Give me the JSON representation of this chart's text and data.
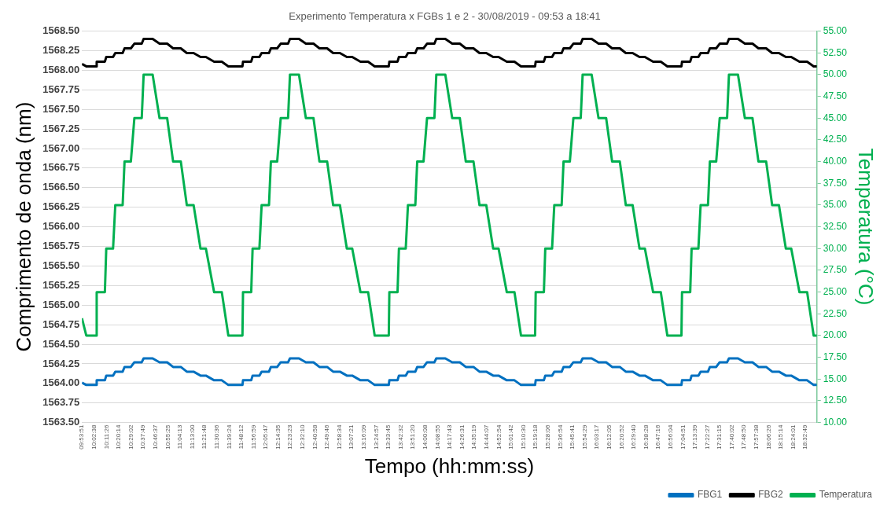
{
  "chart_data": {
    "type": "line",
    "title": "Experimento Temperatura x FGBs 1 e 2 - 30/08/2019 - 09:53 a 18:41",
    "xlabel": "Tempo (hh:mm:ss)",
    "ylabel": "Comprimento de onda (nm)",
    "y2label": "Temperatura (°C)",
    "xlim": [
      9.8975,
      18.6833
    ],
    "xticks": [
      {
        "value": 9.8975,
        "label": "09:53:51"
      },
      {
        "value": 10.0439,
        "label": "10:02:38"
      },
      {
        "value": 10.1906,
        "label": "10:11:26"
      },
      {
        "value": 10.3372,
        "label": "10:20:14"
      },
      {
        "value": 10.4839,
        "label": "10:29:02"
      },
      {
        "value": 10.6303,
        "label": "10:37:49"
      },
      {
        "value": 10.7769,
        "label": "10:46:37"
      },
      {
        "value": 10.9236,
        "label": "10:55:25"
      },
      {
        "value": 11.0703,
        "label": "11:04:13"
      },
      {
        "value": 11.2167,
        "label": "11:13:00"
      },
      {
        "value": 11.3633,
        "label": "11:21:48"
      },
      {
        "value": 11.51,
        "label": "11:30:36"
      },
      {
        "value": 11.6567,
        "label": "11:39:24"
      },
      {
        "value": 11.8033,
        "label": "11:48:12"
      },
      {
        "value": 11.9497,
        "label": "11:56:59"
      },
      {
        "value": 12.0964,
        "label": "12:05:47"
      },
      {
        "value": 12.2431,
        "label": "12:14:35"
      },
      {
        "value": 12.3897,
        "label": "12:23:23"
      },
      {
        "value": 12.5361,
        "label": "12:32:10"
      },
      {
        "value": 12.6828,
        "label": "12:40:58"
      },
      {
        "value": 12.8294,
        "label": "12:49:46"
      },
      {
        "value": 12.9761,
        "label": "12:58:34"
      },
      {
        "value": 13.1225,
        "label": "13:07:21"
      },
      {
        "value": 13.2692,
        "label": "13:16:09"
      },
      {
        "value": 13.4158,
        "label": "13:24:57"
      },
      {
        "value": 13.5625,
        "label": "13:33:45"
      },
      {
        "value": 13.7089,
        "label": "13:42:32"
      },
      {
        "value": 13.8556,
        "label": "13:51:20"
      },
      {
        "value": 14.0022,
        "label": "14:00:08"
      },
      {
        "value": 14.1486,
        "label": "14:08:55"
      },
      {
        "value": 14.2953,
        "label": "14:17:43"
      },
      {
        "value": 14.4419,
        "label": "14:26:31"
      },
      {
        "value": 14.5886,
        "label": "14:35:19"
      },
      {
        "value": 14.7353,
        "label": "14:44:07"
      },
      {
        "value": 14.8817,
        "label": "14:52:54"
      },
      {
        "value": 15.0283,
        "label": "15:01:42"
      },
      {
        "value": 15.175,
        "label": "15:10:30"
      },
      {
        "value": 15.3217,
        "label": "15:19:18"
      },
      {
        "value": 15.4683,
        "label": "15:28:06"
      },
      {
        "value": 15.615,
        "label": "15:36:54"
      },
      {
        "value": 15.7614,
        "label": "15:45:41"
      },
      {
        "value": 15.9081,
        "label": "15:54:29"
      },
      {
        "value": 16.0547,
        "label": "16:03:17"
      },
      {
        "value": 16.2014,
        "label": "16:12:05"
      },
      {
        "value": 16.3478,
        "label": "16:20:52"
      },
      {
        "value": 16.4944,
        "label": "16:29:40"
      },
      {
        "value": 16.6411,
        "label": "16:38:28"
      },
      {
        "value": 16.7878,
        "label": "16:47:16"
      },
      {
        "value": 16.9344,
        "label": "16:56:04"
      },
      {
        "value": 17.0808,
        "label": "17:04:51"
      },
      {
        "value": 17.2275,
        "label": "17:13:39"
      },
      {
        "value": 17.3742,
        "label": "17:22:27"
      },
      {
        "value": 17.5208,
        "label": "17:31:15"
      },
      {
        "value": 17.6672,
        "label": "17:40:02"
      },
      {
        "value": 17.8139,
        "label": "17:48:50"
      },
      {
        "value": 17.9606,
        "label": "17:57:38"
      },
      {
        "value": 18.1072,
        "label": "18:06:26"
      },
      {
        "value": 18.2539,
        "label": "18:15:14"
      },
      {
        "value": 18.4003,
        "label": "18:24:01"
      },
      {
        "value": 18.5469,
        "label": "18:32:49"
      }
    ],
    "ylim": [
      1563.5,
      1568.5
    ],
    "yticks": [
      {
        "value": 1563.5,
        "label": "1563.50"
      },
      {
        "value": 1563.75,
        "label": "1563.75"
      },
      {
        "value": 1564,
        "label": "1564.00"
      },
      {
        "value": 1564.25,
        "label": "1564.25"
      },
      {
        "value": 1564.5,
        "label": "1564.50"
      },
      {
        "value": 1564.75,
        "label": "1564.75"
      },
      {
        "value": 1565,
        "label": "1565.00"
      },
      {
        "value": 1565.25,
        "label": "1565.25"
      },
      {
        "value": 1565.5,
        "label": "1565.50"
      },
      {
        "value": 1565.75,
        "label": "1565.75"
      },
      {
        "value": 1566,
        "label": "1566.00"
      },
      {
        "value": 1566.25,
        "label": "1566.25"
      },
      {
        "value": 1566.5,
        "label": "1566.50"
      },
      {
        "value": 1566.75,
        "label": "1566.75"
      },
      {
        "value": 1567,
        "label": "1567.00"
      },
      {
        "value": 1567.25,
        "label": "1567.25"
      },
      {
        "value": 1567.5,
        "label": "1567.50"
      },
      {
        "value": 1567.75,
        "label": "1567.75"
      },
      {
        "value": 1568,
        "label": "1568.00"
      },
      {
        "value": 1568.25,
        "label": "1568.25"
      },
      {
        "value": 1568.5,
        "label": "1568.50"
      }
    ],
    "y2lim": [
      10,
      55
    ],
    "y2ticks": [
      {
        "value": 10,
        "label": "10.00"
      },
      {
        "value": 12.5,
        "label": "12.50"
      },
      {
        "value": 15,
        "label": "15.00"
      },
      {
        "value": 17.5,
        "label": "17.50"
      },
      {
        "value": 20,
        "label": "20.00"
      },
      {
        "value": 22.5,
        "label": "22.50"
      },
      {
        "value": 25,
        "label": "25.00"
      },
      {
        "value": 27.5,
        "label": "27.50"
      },
      {
        "value": 30,
        "label": "30.00"
      },
      {
        "value": 32.5,
        "label": "32.50"
      },
      {
        "value": 35,
        "label": "35.00"
      },
      {
        "value": 37.5,
        "label": "37.50"
      },
      {
        "value": 40,
        "label": "40.00"
      },
      {
        "value": 42.5,
        "label": "42.50"
      },
      {
        "value": 45,
        "label": "45.00"
      },
      {
        "value": 47.5,
        "label": "47.50"
      },
      {
        "value": 50,
        "label": "50.00"
      },
      {
        "value": 52.5,
        "label": "52.50"
      },
      {
        "value": 55,
        "label": "55.00"
      }
    ],
    "grid": "y",
    "legend": "bottom right",
    "line_style": "solid",
    "x": [
      9.8975,
      9.9494,
      10.0669,
      10.0738,
      10.1717,
      10.1883,
      10.2696,
      10.2961,
      10.3842,
      10.4068,
      10.4822,
      10.5243,
      10.6124,
      10.635,
      10.7427,
      10.825,
      10.9161,
      10.9876,
      11.0796,
      11.1511,
      11.2324,
      11.3147,
      11.3793,
      11.4773,
      11.5693,
      11.6477,
      11.8162,
      11.8231,
      11.921,
      11.9376,
      12.0189,
      12.0454,
      12.1335,
      12.1561,
      12.2315,
      12.2736,
      12.3617,
      12.3843,
      12.492,
      12.5743,
      12.6654,
      12.7369,
      12.8289,
      12.9004,
      12.9817,
      13.064,
      13.1286,
      13.2266,
      13.3186,
      13.397,
      13.5655,
      13.5724,
      13.6703,
      13.6869,
      13.7682,
      13.7947,
      13.8828,
      13.9054,
      13.9808,
      14.0229,
      14.111,
      14.1336,
      14.2413,
      14.3236,
      14.4147,
      14.4862,
      14.5782,
      14.6497,
      14.731,
      14.8133,
      14.8779,
      14.9759,
      15.0679,
      15.1463,
      15.3148,
      15.3217,
      15.4196,
      15.4362,
      15.5175,
      15.544,
      15.6321,
      15.6547,
      15.7301,
      15.7722,
      15.8603,
      15.8829,
      15.9906,
      16.0729,
      16.164,
      16.2355,
      16.3275,
      16.399,
      16.4803,
      16.5626,
      16.6272,
      16.7252,
      16.8172,
      16.8956,
      17.0641,
      17.071,
      17.1689,
      17.1855,
      17.2668,
      17.2933,
      17.3814,
      17.404,
      17.4794,
      17.5215,
      17.6096,
      17.6322,
      17.7399,
      17.8222,
      17.9133,
      17.9848,
      18.0768,
      18.1483,
      18.2296,
      18.3119,
      18.3765,
      18.4745,
      18.5665,
      18.6449,
      18.6833
    ],
    "series": [
      {
        "name": "FBG1",
        "color": "#0070c0",
        "values": [
          1564.01,
          1563.98,
          1563.98,
          1564.04,
          1564.04,
          1564.1,
          1564.1,
          1564.15,
          1564.15,
          1564.21,
          1564.21,
          1564.27,
          1564.27,
          1564.32,
          1564.32,
          1564.27,
          1564.27,
          1564.21,
          1564.21,
          1564.15,
          1564.15,
          1564.1,
          1564.1,
          1564.04,
          1564.04,
          1563.98,
          1563.98,
          1564.04,
          1564.04,
          1564.1,
          1564.1,
          1564.15,
          1564.15,
          1564.21,
          1564.21,
          1564.27,
          1564.27,
          1564.32,
          1564.32,
          1564.27,
          1564.27,
          1564.21,
          1564.21,
          1564.15,
          1564.15,
          1564.1,
          1564.1,
          1564.04,
          1564.04,
          1563.98,
          1563.98,
          1564.04,
          1564.04,
          1564.1,
          1564.1,
          1564.15,
          1564.15,
          1564.21,
          1564.21,
          1564.27,
          1564.27,
          1564.32,
          1564.32,
          1564.27,
          1564.27,
          1564.21,
          1564.21,
          1564.15,
          1564.15,
          1564.1,
          1564.1,
          1564.04,
          1564.04,
          1563.98,
          1563.98,
          1564.04,
          1564.04,
          1564.1,
          1564.1,
          1564.15,
          1564.15,
          1564.21,
          1564.21,
          1564.27,
          1564.27,
          1564.32,
          1564.32,
          1564.27,
          1564.27,
          1564.21,
          1564.21,
          1564.15,
          1564.15,
          1564.1,
          1564.1,
          1564.04,
          1564.04,
          1563.98,
          1563.98,
          1564.04,
          1564.04,
          1564.1,
          1564.1,
          1564.15,
          1564.15,
          1564.21,
          1564.21,
          1564.27,
          1564.27,
          1564.32,
          1564.32,
          1564.27,
          1564.27,
          1564.21,
          1564.21,
          1564.15,
          1564.15,
          1564.1,
          1564.1,
          1564.04,
          1564.04,
          1563.98,
          1563.98
        ]
      },
      {
        "name": "FBG2",
        "color": "#000000",
        "values": [
          1568.08,
          1568.05,
          1568.05,
          1568.11,
          1568.11,
          1568.17,
          1568.17,
          1568.22,
          1568.22,
          1568.28,
          1568.28,
          1568.34,
          1568.34,
          1568.4,
          1568.4,
          1568.34,
          1568.34,
          1568.28,
          1568.28,
          1568.22,
          1568.22,
          1568.17,
          1568.17,
          1568.11,
          1568.11,
          1568.05,
          1568.05,
          1568.11,
          1568.11,
          1568.17,
          1568.17,
          1568.22,
          1568.22,
          1568.28,
          1568.28,
          1568.34,
          1568.34,
          1568.4,
          1568.4,
          1568.34,
          1568.34,
          1568.28,
          1568.28,
          1568.22,
          1568.22,
          1568.17,
          1568.17,
          1568.11,
          1568.11,
          1568.05,
          1568.05,
          1568.11,
          1568.11,
          1568.17,
          1568.17,
          1568.22,
          1568.22,
          1568.28,
          1568.28,
          1568.34,
          1568.34,
          1568.4,
          1568.4,
          1568.34,
          1568.34,
          1568.28,
          1568.28,
          1568.22,
          1568.22,
          1568.17,
          1568.17,
          1568.11,
          1568.11,
          1568.05,
          1568.05,
          1568.11,
          1568.11,
          1568.17,
          1568.17,
          1568.22,
          1568.22,
          1568.28,
          1568.28,
          1568.34,
          1568.34,
          1568.4,
          1568.4,
          1568.34,
          1568.34,
          1568.28,
          1568.28,
          1568.22,
          1568.22,
          1568.17,
          1568.17,
          1568.11,
          1568.11,
          1568.05,
          1568.05,
          1568.11,
          1568.11,
          1568.17,
          1568.17,
          1568.22,
          1568.22,
          1568.28,
          1568.28,
          1568.34,
          1568.34,
          1568.4,
          1568.4,
          1568.34,
          1568.34,
          1568.28,
          1568.28,
          1568.22,
          1568.22,
          1568.17,
          1568.17,
          1568.11,
          1568.11,
          1568.05,
          1568.05
        ]
      },
      {
        "name": "Temperatura",
        "axis": "y2",
        "color": "#00b050",
        "values": [
          22,
          20,
          20,
          25,
          25,
          30,
          30,
          35,
          35,
          40,
          40,
          45,
          45,
          50,
          50,
          45,
          45,
          40,
          40,
          35,
          35,
          30,
          30,
          25,
          25,
          20,
          20,
          25,
          25,
          30,
          30,
          35,
          35,
          40,
          40,
          45,
          45,
          50,
          50,
          45,
          45,
          40,
          40,
          35,
          35,
          30,
          30,
          25,
          25,
          20,
          20,
          25,
          25,
          30,
          30,
          35,
          35,
          40,
          40,
          45,
          45,
          50,
          50,
          45,
          45,
          40,
          40,
          35,
          35,
          30,
          30,
          25,
          25,
          20,
          20,
          25,
          25,
          30,
          30,
          35,
          35,
          40,
          40,
          45,
          45,
          50,
          50,
          45,
          45,
          40,
          40,
          35,
          35,
          30,
          30,
          25,
          25,
          20,
          20,
          25,
          25,
          30,
          30,
          35,
          35,
          40,
          40,
          45,
          45,
          50,
          50,
          45,
          45,
          40,
          40,
          35,
          35,
          30,
          30,
          25,
          25,
          20,
          20
        ]
      }
    ]
  }
}
